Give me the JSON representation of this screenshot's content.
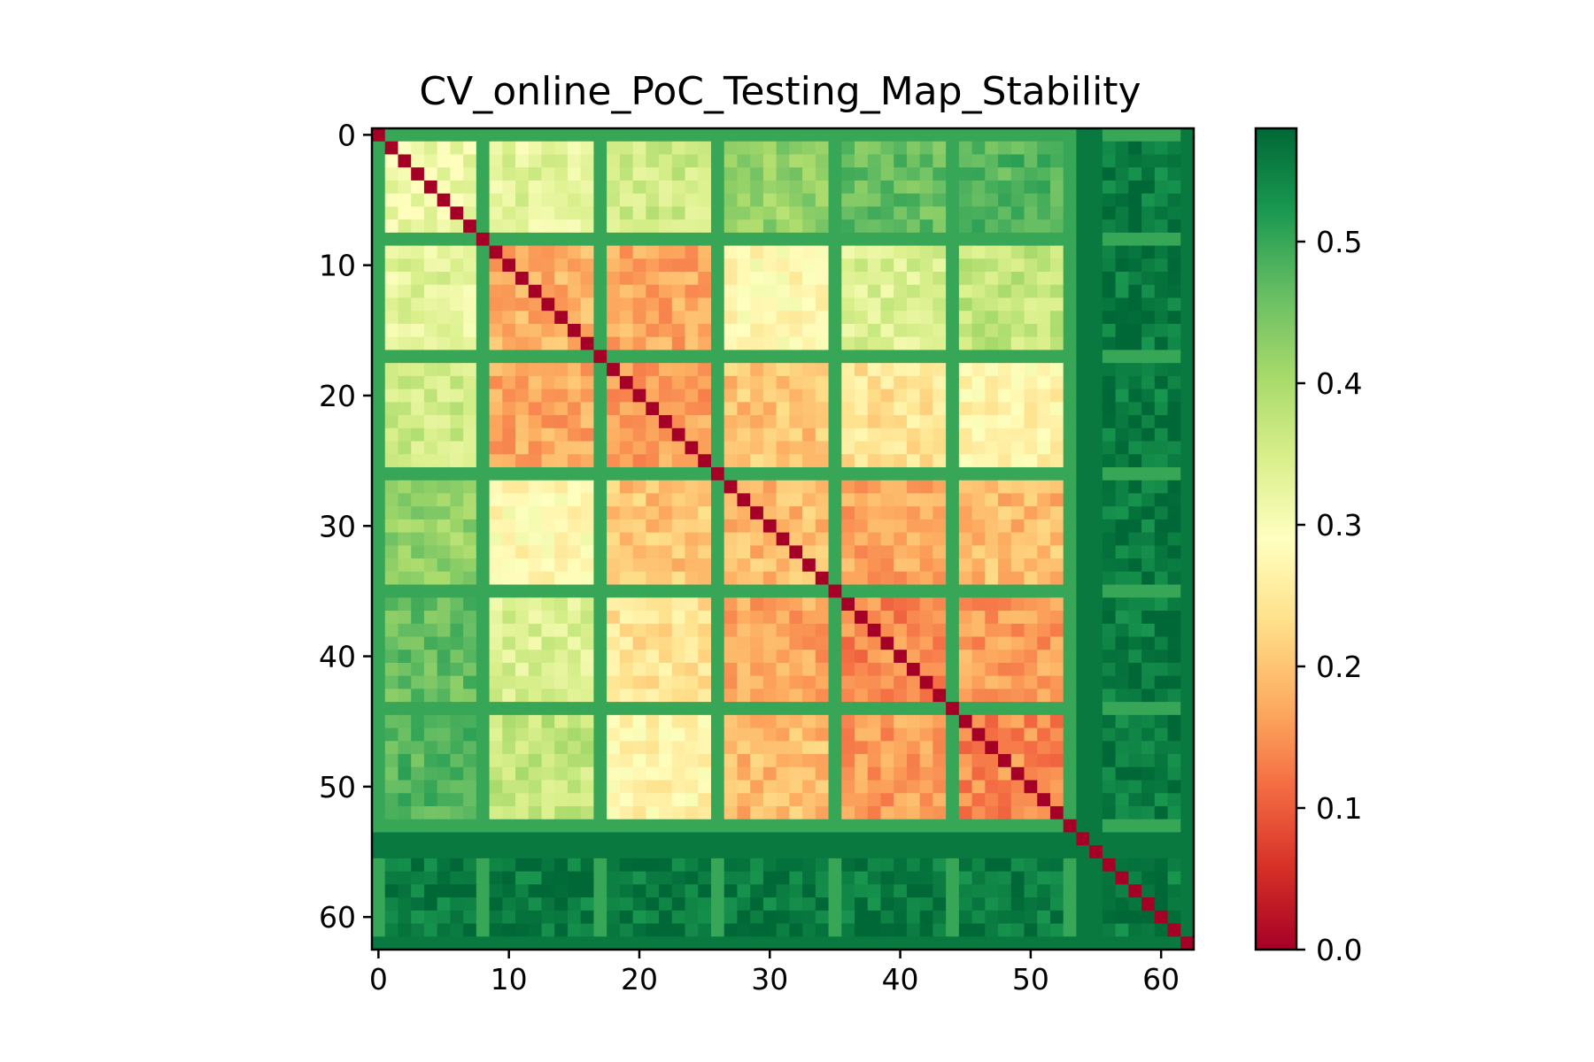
{
  "chart_data": {
    "type": "heatmap",
    "title": "CV_online_PoC_Testing_Map_Stability",
    "xlabel": "",
    "ylabel": "",
    "n": 63,
    "xlim": [
      -0.5,
      62.5
    ],
    "ylim": [
      62.5,
      -0.5
    ],
    "x_ticks": [
      0,
      10,
      20,
      30,
      40,
      50,
      60
    ],
    "x_tick_labels": [
      "0",
      "10",
      "20",
      "30",
      "40",
      "50",
      "60"
    ],
    "y_ticks": [
      0,
      10,
      20,
      30,
      40,
      50,
      60
    ],
    "y_tick_labels": [
      "0",
      "10",
      "20",
      "30",
      "40",
      "50",
      "60"
    ],
    "colormap": "RdYlGn",
    "color_range": [
      0.0,
      0.58
    ],
    "colorbar": {
      "ticks": [
        0.0,
        0.1,
        0.2,
        0.3,
        0.4,
        0.5
      ],
      "tick_labels": [
        "0.0",
        "0.1",
        "0.2",
        "0.3",
        "0.4",
        "0.5"
      ],
      "placement": "right"
    },
    "block_boundaries": [
      0,
      8,
      17,
      26,
      35,
      44,
      53,
      55,
      62,
      63
    ],
    "block_values": [
      [
        0.32,
        0.33,
        0.36,
        0.42,
        0.46,
        0.48,
        0.5,
        0.56,
        0.45
      ],
      [
        0.33,
        0.18,
        0.17,
        0.28,
        0.34,
        0.37,
        0.44,
        0.56,
        0.44
      ],
      [
        0.36,
        0.17,
        0.16,
        0.2,
        0.24,
        0.27,
        0.33,
        0.56,
        0.4
      ],
      [
        0.42,
        0.28,
        0.2,
        0.19,
        0.17,
        0.19,
        0.27,
        0.56,
        0.33
      ],
      [
        0.46,
        0.34,
        0.24,
        0.17,
        0.14,
        0.16,
        0.24,
        0.56,
        0.27
      ],
      [
        0.48,
        0.37,
        0.27,
        0.19,
        0.16,
        0.14,
        0.21,
        0.56,
        0.22
      ],
      [
        0.5,
        0.44,
        0.33,
        0.27,
        0.24,
        0.21,
        0.42,
        0.56,
        0.25
      ],
      [
        0.56,
        0.56,
        0.56,
        0.56,
        0.56,
        0.56,
        0.56,
        0.56,
        0.56
      ],
      [
        0.45,
        0.44,
        0.4,
        0.33,
        0.27,
        0.22,
        0.25,
        0.56,
        0.18
      ]
    ],
    "gap_rows": [
      0,
      8,
      17,
      26,
      35,
      44,
      53
    ],
    "gap_value": 0.5,
    "special_rows": [
      54,
      55,
      62
    ],
    "special_value": 0.56,
    "diagonal_value": 0.0
  }
}
